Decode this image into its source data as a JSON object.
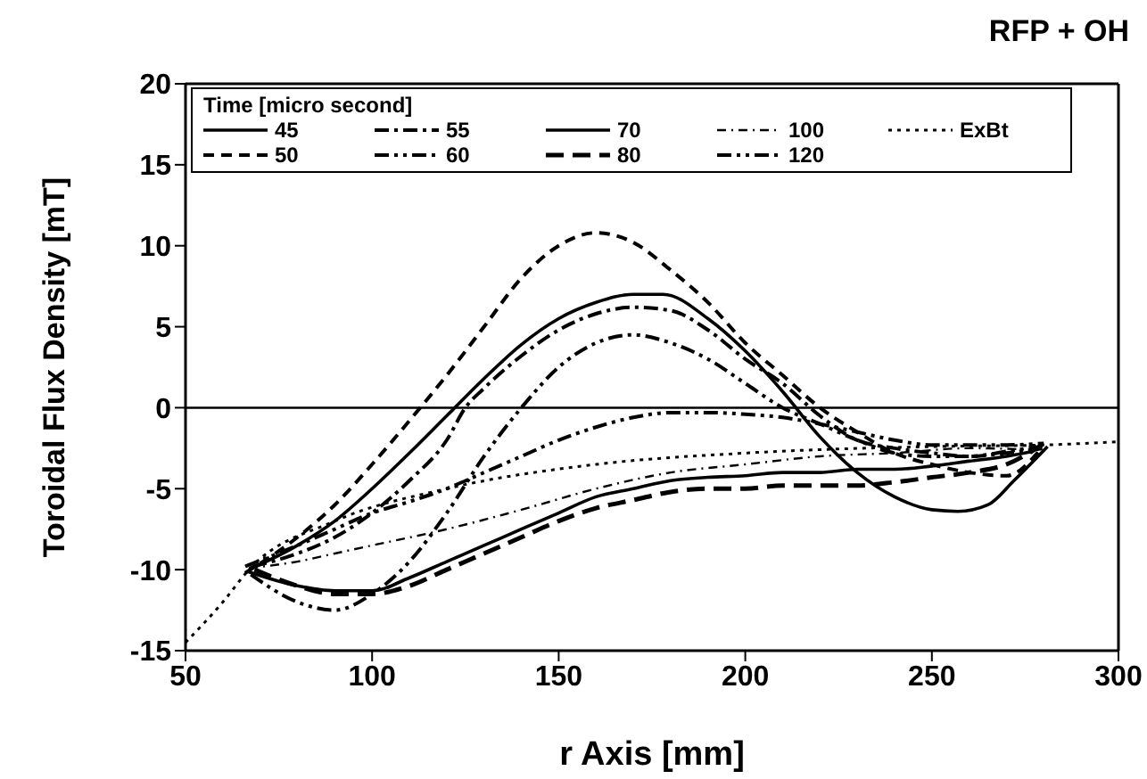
{
  "chart_data": {
    "type": "line",
    "title": "RFP + OH",
    "xlabel": "r Axis [mm]",
    "ylabel": "Toroidal Flux Density [mT]",
    "legend_title": "Time [micro second]",
    "legend": "top left",
    "grid": false,
    "xlim": [
      50,
      300
    ],
    "xticks": [
      50,
      100,
      150,
      200,
      250,
      300
    ],
    "ylim": [
      -15,
      20
    ],
    "yticks": [
      -15,
      -10,
      -5,
      0,
      5,
      10,
      15,
      20
    ],
    "ref_lines": [
      {
        "axis": "y",
        "value": 0,
        "color": "#000000"
      }
    ],
    "series": [
      {
        "name": "45",
        "color": "#000000",
        "line_style": "solid",
        "x": [
          67,
          80,
          90,
          100,
          110,
          120,
          130,
          140,
          150,
          160,
          170,
          178,
          190,
          200,
          210,
          220,
          230,
          240,
          250,
          257,
          265,
          272,
          281
        ],
        "values": [
          -10,
          -8.5,
          -7,
          -5,
          -2.8,
          -0.5,
          1.8,
          3.9,
          5.5,
          6.5,
          7,
          7,
          5.5,
          3.5,
          1,
          -1.8,
          -4,
          -5.5,
          -6.3,
          -6.4,
          -6,
          -4.5,
          -2.4
        ]
      },
      {
        "name": "50",
        "color": "#000000",
        "line_style": "dashed",
        "x": [
          66,
          80,
          90,
          100,
          110,
          120,
          130,
          140,
          150,
          160,
          170,
          180,
          190,
          200,
          210,
          220,
          230,
          240,
          250,
          260,
          270,
          279
        ],
        "values": [
          -10.2,
          -8,
          -6,
          -3.5,
          -0.8,
          2,
          5,
          8,
          10,
          10.8,
          10.2,
          8.5,
          6.5,
          4,
          2,
          0,
          -1.5,
          -2.8,
          -3.5,
          -4,
          -4.2,
          -2.6
        ]
      },
      {
        "name": "55",
        "color": "#000000",
        "line_style": "dashdot",
        "x": [
          68,
          80,
          90,
          100,
          110,
          120,
          125,
          130,
          140,
          150,
          160,
          170,
          180,
          190,
          200,
          210,
          220,
          230,
          240,
          250,
          260,
          270,
          280
        ],
        "values": [
          -9.8,
          -9,
          -8,
          -6.5,
          -4.5,
          -2,
          0,
          1.2,
          3.2,
          4.8,
          5.8,
          6.2,
          6,
          4.8,
          3,
          1.5,
          -0.5,
          -2,
          -2.5,
          -2.8,
          -3,
          -2.8,
          -2.5
        ]
      },
      {
        "name": "60",
        "color": "#000000",
        "line_style": "dashdotdot",
        "x": [
          67.5,
          80,
          90,
          100,
          110,
          120,
          130,
          140,
          150,
          160,
          170,
          180,
          190,
          200,
          210,
          220,
          230,
          240,
          250,
          260,
          270,
          278
        ],
        "values": [
          -10.3,
          -12,
          -12.5,
          -11.5,
          -9.5,
          -6.5,
          -3,
          0,
          2.5,
          4,
          4.5,
          4,
          3,
          1.5,
          0,
          -1,
          -2,
          -2.8,
          -3,
          -3,
          -2.7,
          -2.4
        ]
      },
      {
        "name": "70",
        "color": "#000000",
        "line_style": "solid",
        "x": [
          66.5,
          80,
          90,
          100,
          110,
          120,
          130,
          140,
          150,
          160,
          170,
          180,
          190,
          200,
          210,
          220,
          230,
          240,
          250,
          260,
          270,
          277
        ],
        "values": [
          -10.1,
          -11,
          -11.3,
          -11.3,
          -10.5,
          -9.5,
          -8.5,
          -7.5,
          -6.5,
          -5.5,
          -5,
          -4.5,
          -4.3,
          -4.2,
          -4,
          -4,
          -3.8,
          -3.8,
          -3.6,
          -3.3,
          -3,
          -2.7
        ]
      },
      {
        "name": "80",
        "color": "#000000",
        "line_style": "longdash",
        "x": [
          68.5,
          80,
          90,
          100,
          110,
          120,
          130,
          140,
          150,
          160,
          170,
          180,
          190,
          200,
          210,
          220,
          230,
          240,
          250,
          260,
          270,
          279.5
        ],
        "values": [
          -10,
          -11,
          -11.5,
          -11.5,
          -11,
          -10,
          -9,
          -8,
          -7,
          -6.2,
          -5.7,
          -5.2,
          -5,
          -5,
          -4.8,
          -4.8,
          -4.8,
          -4.6,
          -4.3,
          -4,
          -3.5,
          -2.3
        ]
      },
      {
        "name": "100",
        "color": "#000000",
        "line_style": "boxdot",
        "x": [
          67,
          80,
          90,
          100,
          120,
          140,
          160,
          180,
          200,
          220,
          240,
          260,
          278.5
        ],
        "values": [
          -9.9,
          -9.5,
          -9,
          -8.5,
          -7.5,
          -6.3,
          -5,
          -4,
          -3.5,
          -3,
          -2.8,
          -2.5,
          -2.6
        ]
      },
      {
        "name": "120",
        "color": "#000000",
        "line_style": "dashdotdot",
        "x": [
          66,
          80,
          90,
          100,
          110,
          120,
          130,
          140,
          150,
          160,
          170,
          180,
          190,
          200,
          210,
          220,
          230,
          240,
          250,
          260,
          270,
          280
        ],
        "values": [
          -9.8,
          -8.5,
          -7.5,
          -6.5,
          -5.8,
          -5,
          -4,
          -3,
          -2,
          -1.2,
          -0.6,
          -0.3,
          -0.3,
          -0.4,
          -0.6,
          -1,
          -1.5,
          -2,
          -2.3,
          -2.3,
          -2.3,
          -2.2
        ]
      },
      {
        "name": "ExBt",
        "color": "#000000",
        "line_style": "dotted",
        "x": [
          50,
          60,
          67,
          90,
          120,
          160,
          200,
          250,
          280,
          300
        ],
        "values": [
          -14.5,
          -12,
          -10,
          -7,
          -5,
          -3.5,
          -2.8,
          -2.4,
          -2.3,
          -2.1
        ]
      }
    ]
  }
}
